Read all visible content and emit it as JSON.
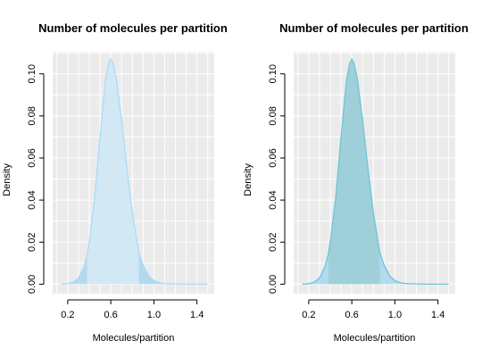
{
  "chart_data": [
    {
      "type": "area",
      "title": "Number of molecules per partition",
      "xlabel": "Molecules/partition",
      "ylabel": "Density",
      "xlim": [
        0.06,
        1.56
      ],
      "ylim": [
        -0.0045,
        0.1105
      ],
      "x_ticks": [
        0.2,
        0.6,
        1.0,
        1.4
      ],
      "x_tick_labels": [
        "0.2",
        "0.6",
        "1.0",
        "1.4"
      ],
      "y_ticks": [
        0.0,
        0.02,
        0.04,
        0.06,
        0.08,
        0.1
      ],
      "y_tick_labels": [
        "0.00",
        "0.02",
        "0.04",
        "0.06",
        "0.08",
        "0.10"
      ],
      "x_grid": [
        0.1,
        0.2,
        0.3,
        0.4,
        0.5,
        0.6,
        0.7,
        0.8,
        0.9,
        1.0,
        1.1,
        1.2,
        1.3,
        1.4,
        1.5
      ],
      "y_grid": [
        0.0,
        0.01,
        0.02,
        0.03,
        0.04,
        0.05,
        0.06,
        0.07,
        0.08,
        0.09,
        0.1,
        0.11
      ],
      "grid": true,
      "panel_color": "#ebebeb",
      "fill_color": "#d2e8f4",
      "outer_tail_color": "#a8d6ee",
      "line_color": "#a9dcf8",
      "inner_interval": [
        0.38,
        0.86
      ],
      "series": [
        {
          "x": [
            0.14,
            0.2,
            0.25,
            0.3,
            0.35,
            0.38,
            0.4,
            0.45,
            0.5,
            0.55,
            0.58,
            0.6,
            0.62,
            0.65,
            0.7,
            0.75,
            0.8,
            0.86,
            0.9,
            0.95,
            1.0,
            1.05,
            1.1,
            1.2,
            1.3,
            1.4,
            1.5
          ],
          "y": [
            0.0,
            0.0002,
            0.0009,
            0.003,
            0.008,
            0.014,
            0.02,
            0.041,
            0.07,
            0.097,
            0.105,
            0.107,
            0.105,
            0.098,
            0.078,
            0.055,
            0.034,
            0.015,
            0.009,
            0.004,
            0.0017,
            0.0007,
            0.0003,
            0.0001,
            0.0,
            0.0,
            0.0
          ]
        }
      ]
    },
    {
      "type": "area",
      "title": "Number of molecules per partition",
      "xlabel": "Molecules/partition",
      "ylabel": "Density",
      "xlim": [
        0.06,
        1.56
      ],
      "ylim": [
        -0.0045,
        0.1105
      ],
      "x_ticks": [
        0.2,
        0.6,
        1.0,
        1.4
      ],
      "x_tick_labels": [
        "0.2",
        "0.6",
        "1.0",
        "1.4"
      ],
      "y_ticks": [
        0.0,
        0.02,
        0.04,
        0.06,
        0.08,
        0.1
      ],
      "y_tick_labels": [
        "0.00",
        "0.02",
        "0.04",
        "0.06",
        "0.08",
        "0.10"
      ],
      "x_grid": [
        0.1,
        0.2,
        0.3,
        0.4,
        0.5,
        0.6,
        0.7,
        0.8,
        0.9,
        1.0,
        1.1,
        1.2,
        1.3,
        1.4,
        1.5
      ],
      "y_grid": [
        0.0,
        0.01,
        0.02,
        0.03,
        0.04,
        0.05,
        0.06,
        0.07,
        0.08,
        0.09,
        0.1,
        0.11
      ],
      "grid": true,
      "panel_color": "#ebebeb",
      "fill_color": "#9fd0d9",
      "outer_tail_color": "#a8d6ee",
      "line_color": "#6fc3dc",
      "inner_interval": [
        0.38,
        0.86
      ],
      "series": [
        {
          "x": [
            0.14,
            0.2,
            0.25,
            0.3,
            0.35,
            0.38,
            0.4,
            0.45,
            0.5,
            0.55,
            0.58,
            0.6,
            0.62,
            0.65,
            0.7,
            0.75,
            0.8,
            0.86,
            0.9,
            0.95,
            1.0,
            1.05,
            1.1,
            1.2,
            1.3,
            1.4,
            1.5
          ],
          "y": [
            0.0,
            0.0002,
            0.0009,
            0.003,
            0.008,
            0.014,
            0.02,
            0.041,
            0.07,
            0.097,
            0.105,
            0.107,
            0.105,
            0.098,
            0.078,
            0.055,
            0.034,
            0.015,
            0.009,
            0.004,
            0.0017,
            0.0007,
            0.0003,
            0.0001,
            0.0,
            0.0,
            0.0
          ]
        }
      ]
    }
  ]
}
